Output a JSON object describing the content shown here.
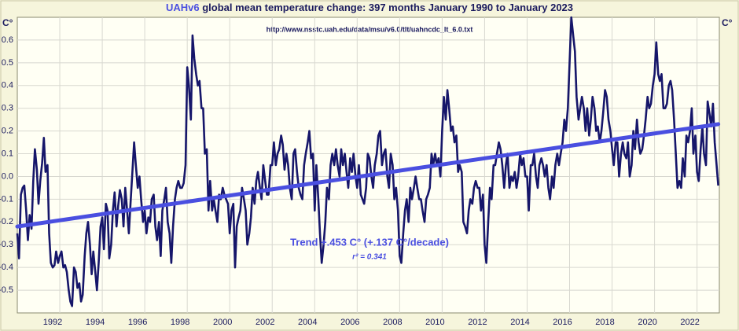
{
  "chart_data": {
    "type": "line",
    "title_prefix": "UAHv6",
    "title": "global mean temperature change: 397 months January 1990 to January 2023",
    "subtitle": "http://www.nsstc.uah.edu/data/msu/v6.0/tlt/uahncdc_lt_6.0.txt",
    "ylabel": "C°",
    "annotation": "Trend +.453 C° (+.137 C°/decade)",
    "annotation2": "r² = 0.341",
    "color": "#16166a",
    "trend_color": "#4a4fe0",
    "grid": true,
    "xlim": [
      1990,
      2023.05
    ],
    "ylim": [
      -0.6,
      0.7
    ],
    "xticks": [
      1992,
      1994,
      1996,
      1998,
      2000,
      2002,
      2004,
      2006,
      2008,
      2010,
      2012,
      2014,
      2016,
      2018,
      2020,
      2022
    ],
    "yticks": [
      -0.5,
      -0.4,
      -0.3,
      -0.2,
      -0.1,
      {
        "value": 0,
        "label": "0.0"
      },
      0.1,
      0.2,
      0.3,
      0.4,
      0.5,
      0.6
    ],
    "trend_x": [
      1990,
      2023
    ],
    "trend_values": [
      -0.22,
      0.23
    ],
    "x": [
      1990,
      1990.08,
      1990.17,
      1990.25,
      1990.33,
      1990.42,
      1990.5,
      1990.58,
      1990.67,
      1990.75,
      1990.83,
      1990.92,
      1991,
      1991.08,
      1991.17,
      1991.25,
      1991.33,
      1991.42,
      1991.5,
      1991.58,
      1991.67,
      1991.75,
      1991.83,
      1991.92,
      1992,
      1992.08,
      1992.17,
      1992.25,
      1992.33,
      1992.42,
      1992.5,
      1992.58,
      1992.67,
      1992.75,
      1992.83,
      1992.92,
      1993,
      1993.08,
      1993.17,
      1993.25,
      1993.33,
      1993.42,
      1993.5,
      1993.58,
      1993.67,
      1993.75,
      1993.83,
      1993.92,
      1994,
      1994.08,
      1994.17,
      1994.25,
      1994.33,
      1994.42,
      1994.5,
      1994.58,
      1994.67,
      1994.75,
      1994.83,
      1994.92,
      1995,
      1995.08,
      1995.17,
      1995.25,
      1995.33,
      1995.42,
      1995.5,
      1995.58,
      1995.67,
      1995.75,
      1995.83,
      1995.92,
      1996,
      1996.08,
      1996.17,
      1996.25,
      1996.33,
      1996.42,
      1996.5,
      1996.58,
      1996.67,
      1996.75,
      1996.83,
      1996.92,
      1997,
      1997.08,
      1997.17,
      1997.25,
      1997.33,
      1997.42,
      1997.5,
      1997.58,
      1997.67,
      1997.75,
      1997.83,
      1997.92,
      1998,
      1998.08,
      1998.17,
      1998.25,
      1998.33,
      1998.42,
      1998.5,
      1998.58,
      1998.67,
      1998.75,
      1998.83,
      1998.92,
      1999,
      1999.08,
      1999.17,
      1999.25,
      1999.33,
      1999.42,
      1999.5,
      1999.58,
      1999.67,
      1999.75,
      1999.83,
      1999.92,
      2000,
      2000.08,
      2000.17,
      2000.25,
      2000.33,
      2000.42,
      2000.5,
      2000.58,
      2000.67,
      2000.75,
      2000.83,
      2000.92,
      2001,
      2001.08,
      2001.17,
      2001.25,
      2001.33,
      2001.42,
      2001.5,
      2001.58,
      2001.67,
      2001.75,
      2001.83,
      2001.92,
      2002,
      2002.08,
      2002.17,
      2002.25,
      2002.33,
      2002.42,
      2002.5,
      2002.58,
      2002.67,
      2002.75,
      2002.83,
      2002.92,
      2003,
      2003.08,
      2003.17,
      2003.25,
      2003.33,
      2003.42,
      2003.5,
      2003.58,
      2003.67,
      2003.75,
      2003.83,
      2003.92,
      2004,
      2004.08,
      2004.17,
      2004.25,
      2004.33,
      2004.42,
      2004.5,
      2004.58,
      2004.67,
      2004.75,
      2004.83,
      2004.92,
      2005,
      2005.08,
      2005.17,
      2005.25,
      2005.33,
      2005.42,
      2005.5,
      2005.58,
      2005.67,
      2005.75,
      2005.83,
      2005.92,
      2006,
      2006.08,
      2006.17,
      2006.25,
      2006.33,
      2006.42,
      2006.5,
      2006.58,
      2006.67,
      2006.75,
      2006.83,
      2006.92,
      2007,
      2007.08,
      2007.17,
      2007.25,
      2007.33,
      2007.42,
      2007.5,
      2007.58,
      2007.67,
      2007.75,
      2007.83,
      2007.92,
      2008,
      2008.08,
      2008.17,
      2008.25,
      2008.33,
      2008.42,
      2008.5,
      2008.58,
      2008.67,
      2008.75,
      2008.83,
      2008.92,
      2009,
      2009.08,
      2009.17,
      2009.25,
      2009.33,
      2009.42,
      2009.5,
      2009.58,
      2009.67,
      2009.75,
      2009.83,
      2009.92,
      2010,
      2010.08,
      2010.17,
      2010.25,
      2010.33,
      2010.42,
      2010.5,
      2010.58,
      2010.67,
      2010.75,
      2010.83,
      2010.92,
      2011,
      2011.08,
      2011.17,
      2011.25,
      2011.33,
      2011.42,
      2011.5,
      2011.58,
      2011.67,
      2011.75,
      2011.83,
      2011.92,
      2012,
      2012.08,
      2012.17,
      2012.25,
      2012.33,
      2012.42,
      2012.5,
      2012.58,
      2012.67,
      2012.75,
      2012.83,
      2012.92,
      2013,
      2013.08,
      2013.17,
      2013.25,
      2013.33,
      2013.42,
      2013.5,
      2013.58,
      2013.67,
      2013.75,
      2013.83,
      2013.92,
      2014,
      2014.08,
      2014.17,
      2014.25,
      2014.33,
      2014.42,
      2014.5,
      2014.58,
      2014.67,
      2014.75,
      2014.83,
      2014.92,
      2015,
      2015.08,
      2015.17,
      2015.25,
      2015.33,
      2015.42,
      2015.5,
      2015.58,
      2015.67,
      2015.75,
      2015.83,
      2015.92,
      2016,
      2016.08,
      2016.17,
      2016.25,
      2016.33,
      2016.42,
      2016.5,
      2016.58,
      2016.67,
      2016.75,
      2016.83,
      2016.92,
      2017,
      2017.08,
      2017.17,
      2017.25,
      2017.33,
      2017.42,
      2017.5,
      2017.58,
      2017.67,
      2017.75,
      2017.83,
      2017.92,
      2018,
      2018.08,
      2018.17,
      2018.25,
      2018.33,
      2018.42,
      2018.5,
      2018.58,
      2018.67,
      2018.75,
      2018.83,
      2018.92,
      2019,
      2019.08,
      2019.17,
      2019.25,
      2019.33,
      2019.42,
      2019.5,
      2019.58,
      2019.67,
      2019.75,
      2019.83,
      2019.92,
      2020,
      2020.08,
      2020.17,
      2020.25,
      2020.33,
      2020.42,
      2020.5,
      2020.58,
      2020.67,
      2020.75,
      2020.83,
      2020.92,
      2021,
      2021.08,
      2021.17,
      2021.25,
      2021.33,
      2021.42,
      2021.5,
      2021.58,
      2021.67,
      2021.75,
      2021.83,
      2021.92,
      2022,
      2022.08,
      2022.17,
      2022.25,
      2022.33,
      2022.42,
      2022.5,
      2022.58,
      2022.67,
      2022.75,
      2022.83,
      2022.92,
      2023
    ],
    "values": [
      -0.25,
      -0.36,
      -0.08,
      -0.05,
      -0.04,
      -0.15,
      -0.28,
      -0.17,
      -0.23,
      -0.02,
      0.12,
      0.03,
      -0.12,
      -0.02,
      0.06,
      0.17,
      0.02,
      0.05,
      -0.25,
      -0.38,
      -0.4,
      -0.39,
      -0.33,
      -0.38,
      -0.35,
      -0.33,
      -0.4,
      -0.39,
      -0.42,
      -0.5,
      -0.55,
      -0.57,
      -0.4,
      -0.42,
      -0.49,
      -0.47,
      -0.55,
      -0.52,
      -0.35,
      -0.25,
      -0.2,
      -0.3,
      -0.43,
      -0.33,
      -0.42,
      -0.5,
      -0.38,
      -0.22,
      -0.18,
      -0.32,
      -0.12,
      -0.15,
      -0.36,
      -0.3,
      -0.15,
      -0.07,
      -0.22,
      -0.13,
      -0.06,
      -0.1,
      -0.22,
      -0.05,
      -0.15,
      -0.25,
      -0.12,
      0.02,
      0.15,
      0.05,
      -0.05,
      0.0,
      -0.1,
      -0.2,
      -0.15,
      -0.25,
      -0.18,
      -0.2,
      -0.1,
      -0.08,
      -0.22,
      -0.28,
      -0.2,
      -0.35,
      -0.15,
      -0.1,
      -0.05,
      -0.2,
      -0.25,
      -0.38,
      -0.22,
      -0.1,
      -0.05,
      -0.02,
      -0.05,
      -0.05,
      -0.03,
      0.05,
      0.48,
      0.4,
      0.25,
      0.62,
      0.52,
      0.45,
      0.4,
      0.42,
      0.3,
      0.3,
      0.1,
      0.12,
      -0.15,
      -0.02,
      -0.15,
      -0.1,
      -0.15,
      -0.2,
      -0.08,
      -0.1,
      -0.05,
      -0.08,
      -0.1,
      -0.12,
      -0.25,
      -0.15,
      -0.12,
      -0.4,
      -0.22,
      -0.18,
      -0.15,
      -0.05,
      -0.1,
      -0.15,
      -0.3,
      -0.25,
      -0.18,
      -0.05,
      -0.12,
      -0.02,
      0.02,
      -0.05,
      -0.1,
      0.05,
      -0.02,
      -0.08,
      -0.08,
      0.05,
      0.05,
      0.15,
      0.05,
      0.1,
      0.12,
      0.18,
      0.14,
      0.03,
      0.1,
      0.05,
      -0.05,
      -0.1,
      0.1,
      0.12,
      0.02,
      -0.05,
      -0.08,
      -0.1,
      0.05,
      0.1,
      0.15,
      0.2,
      0.08,
      0.1,
      -0.15,
      0.05,
      -0.1,
      -0.25,
      -0.38,
      -0.3,
      -0.2,
      -0.05,
      -0.1,
      0.05,
      0.1,
      0.05,
      0.12,
      0.05,
      0.0,
      0.12,
      0.05,
      0.1,
      0.02,
      -0.05,
      0.08,
      0.02,
      0.1,
      0.0,
      -0.05,
      0.05,
      -0.08,
      -0.1,
      -0.12,
      -0.05,
      0.1,
      0.08,
      0.0,
      -0.05,
      0.05,
      0.1,
      0.18,
      0.2,
      0.05,
      0.1,
      0.12,
      0.0,
      -0.05,
      0.1,
      0.05,
      -0.1,
      -0.05,
      -0.15,
      -0.35,
      -0.38,
      -0.25,
      -0.15,
      -0.1,
      -0.2,
      -0.05,
      -0.1,
      -0.05,
      0.0,
      -0.05,
      -0.1,
      -0.1,
      -0.15,
      -0.2,
      -0.1,
      -0.08,
      -0.05,
      0.1,
      0.05,
      0.1,
      0.05,
      0.08,
      0.0,
      0.2,
      0.35,
      0.25,
      0.38,
      0.3,
      0.2,
      0.22,
      0.15,
      0.18,
      0.02,
      0.05,
      0.02,
      -0.2,
      -0.22,
      -0.25,
      -0.15,
      -0.1,
      -0.12,
      -0.05,
      -0.02,
      -0.05,
      -0.05,
      -0.15,
      -0.08,
      -0.3,
      -0.38,
      -0.2,
      -0.05,
      -0.1,
      0.05,
      0.05,
      0.1,
      0.15,
      0.12,
      0.05,
      -0.05,
      0.05,
      0.1,
      -0.05,
      0.0,
      -0.02,
      0.02,
      -0.05,
      0.0,
      0.1,
      0.05,
      0.08,
      0.0,
      0.0,
      -0.15,
      0.05,
      0.05,
      0.1,
      0.0,
      -0.05,
      0.05,
      0.08,
      0.05,
      0.0,
      0.05,
      -0.05,
      -0.1,
      0.0,
      -0.05,
      0.05,
      0.1,
      0.05,
      0.1,
      0.15,
      0.25,
      0.2,
      0.3,
      0.5,
      0.7,
      0.62,
      0.55,
      0.35,
      0.25,
      0.3,
      0.35,
      0.3,
      0.2,
      0.3,
      0.18,
      0.25,
      0.35,
      0.3,
      0.2,
      0.22,
      0.15,
      0.2,
      0.28,
      0.38,
      0.35,
      0.25,
      0.2,
      0.12,
      0.05,
      0.15,
      0.15,
      0.0,
      0.1,
      0.15,
      0.1,
      0.08,
      0.15,
      0.0,
      0.05,
      0.2,
      0.12,
      0.25,
      0.15,
      0.1,
      0.12,
      0.18,
      0.25,
      0.35,
      0.3,
      0.32,
      0.4,
      0.45,
      0.59,
      0.45,
      0.42,
      0.45,
      0.3,
      0.3,
      0.32,
      0.4,
      0.42,
      0.38,
      0.25,
      0.1,
      -0.05,
      -0.02,
      -0.05,
      0.08,
      0.0,
      0.18,
      0.15,
      0.2,
      0.3,
      0.1,
      0.18,
      0.02,
      -0.02,
      0.12,
      0.22,
      0.1,
      0.05,
      0.33,
      0.28,
      0.22,
      0.32,
      0.15,
      0.05,
      -0.04
    ]
  }
}
